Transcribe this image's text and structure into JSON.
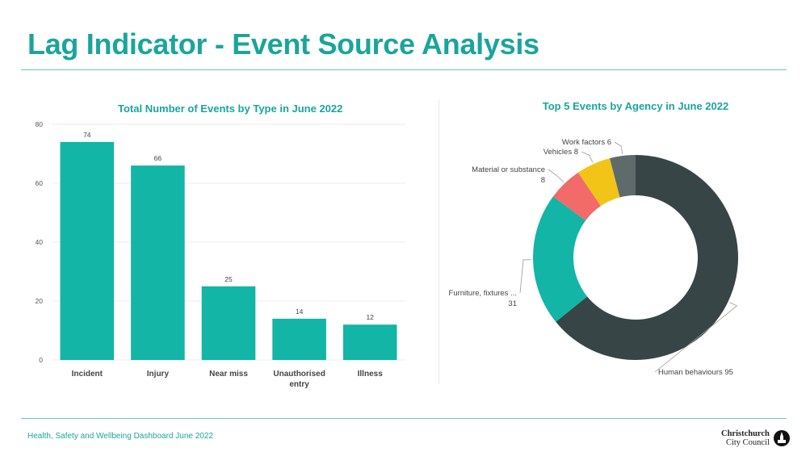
{
  "page": {
    "title": "Lag Indicator - Event Source Analysis",
    "footer": "Health, Safety and Wellbeing Dashboard June 2022",
    "logo_line1": "Christchurch",
    "logo_line2": "City Council"
  },
  "colors": {
    "accent": "#1aa59c",
    "bar": "#12b5a6",
    "donut": [
      "#374547",
      "#12b5a6",
      "#f26a6a",
      "#f2c417",
      "#5f6a6a"
    ]
  },
  "chart_data": [
    {
      "type": "bar",
      "title": "Total Number of Events by Type in June 2022",
      "categories": [
        "Incident",
        "Injury",
        "Near miss",
        "Unauthorised entry",
        "Illness"
      ],
      "category_lines": [
        [
          "Incident"
        ],
        [
          "Injury"
        ],
        [
          "Near miss"
        ],
        [
          "Unauthorised",
          "entry"
        ],
        [
          "Illness"
        ]
      ],
      "values": [
        74,
        66,
        25,
        14,
        12
      ],
      "yticks": [
        0,
        20,
        40,
        60,
        80
      ],
      "ylim": [
        0,
        80
      ],
      "xlabel": "",
      "ylabel": "",
      "grid": true
    },
    {
      "type": "pie",
      "title": "Top 5 Events by Agency in June 2022",
      "labels": [
        "Human behaviours",
        "Furniture, fixtures ...",
        "Material or substance",
        "Vehicles",
        "Work factors"
      ],
      "values": [
        95,
        31,
        8,
        8,
        6
      ],
      "label_text": [
        "Human behaviours 95",
        "Furniture, fixtures ...",
        "Material or substance",
        "Vehicles 8",
        "Work factors 6"
      ],
      "label_value": [
        "",
        "31",
        "8",
        "",
        ""
      ],
      "hole": true
    }
  ]
}
